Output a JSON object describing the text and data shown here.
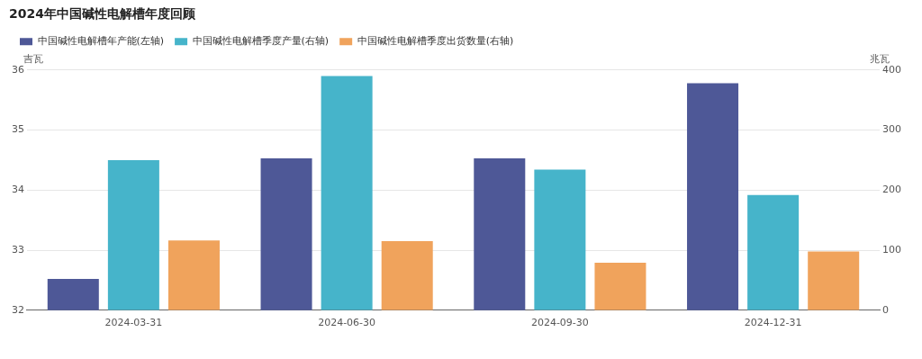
{
  "chart_data": {
    "type": "bar",
    "title": "2024年中国碱性电解槽年度回顾",
    "categories": [
      "2024-03-31",
      "2024-06-30",
      "2024-09-30",
      "2024-12-31"
    ],
    "ylabel": "吉瓦",
    "y2label": "兆瓦",
    "series": [
      {
        "name": "中国碱性电解槽年产能(左轴)",
        "color": "#4e5897",
        "values": [
          32.52,
          34.53,
          34.53,
          35.78
        ]
      },
      {
        "name": "中国碱性电解槽季度产量(右轴)",
        "color": "#46b4ca",
        "values": [
          250,
          390,
          234,
          192
        ],
        "axis": "y2"
      },
      {
        "name": "中国碱性电解槽季度出货数量(右轴)",
        "color": "#f0a35c",
        "values": [
          116,
          115,
          79,
          98
        ],
        "axis": "y2"
      }
    ],
    "ylim": [
      32,
      36
    ],
    "yticks": [
      32,
      33,
      34,
      35,
      36
    ],
    "y2lim": [
      0,
      400
    ],
    "y2ticks": [
      0,
      100,
      200,
      300,
      400
    ],
    "grid": "y",
    "legend": "top left"
  }
}
